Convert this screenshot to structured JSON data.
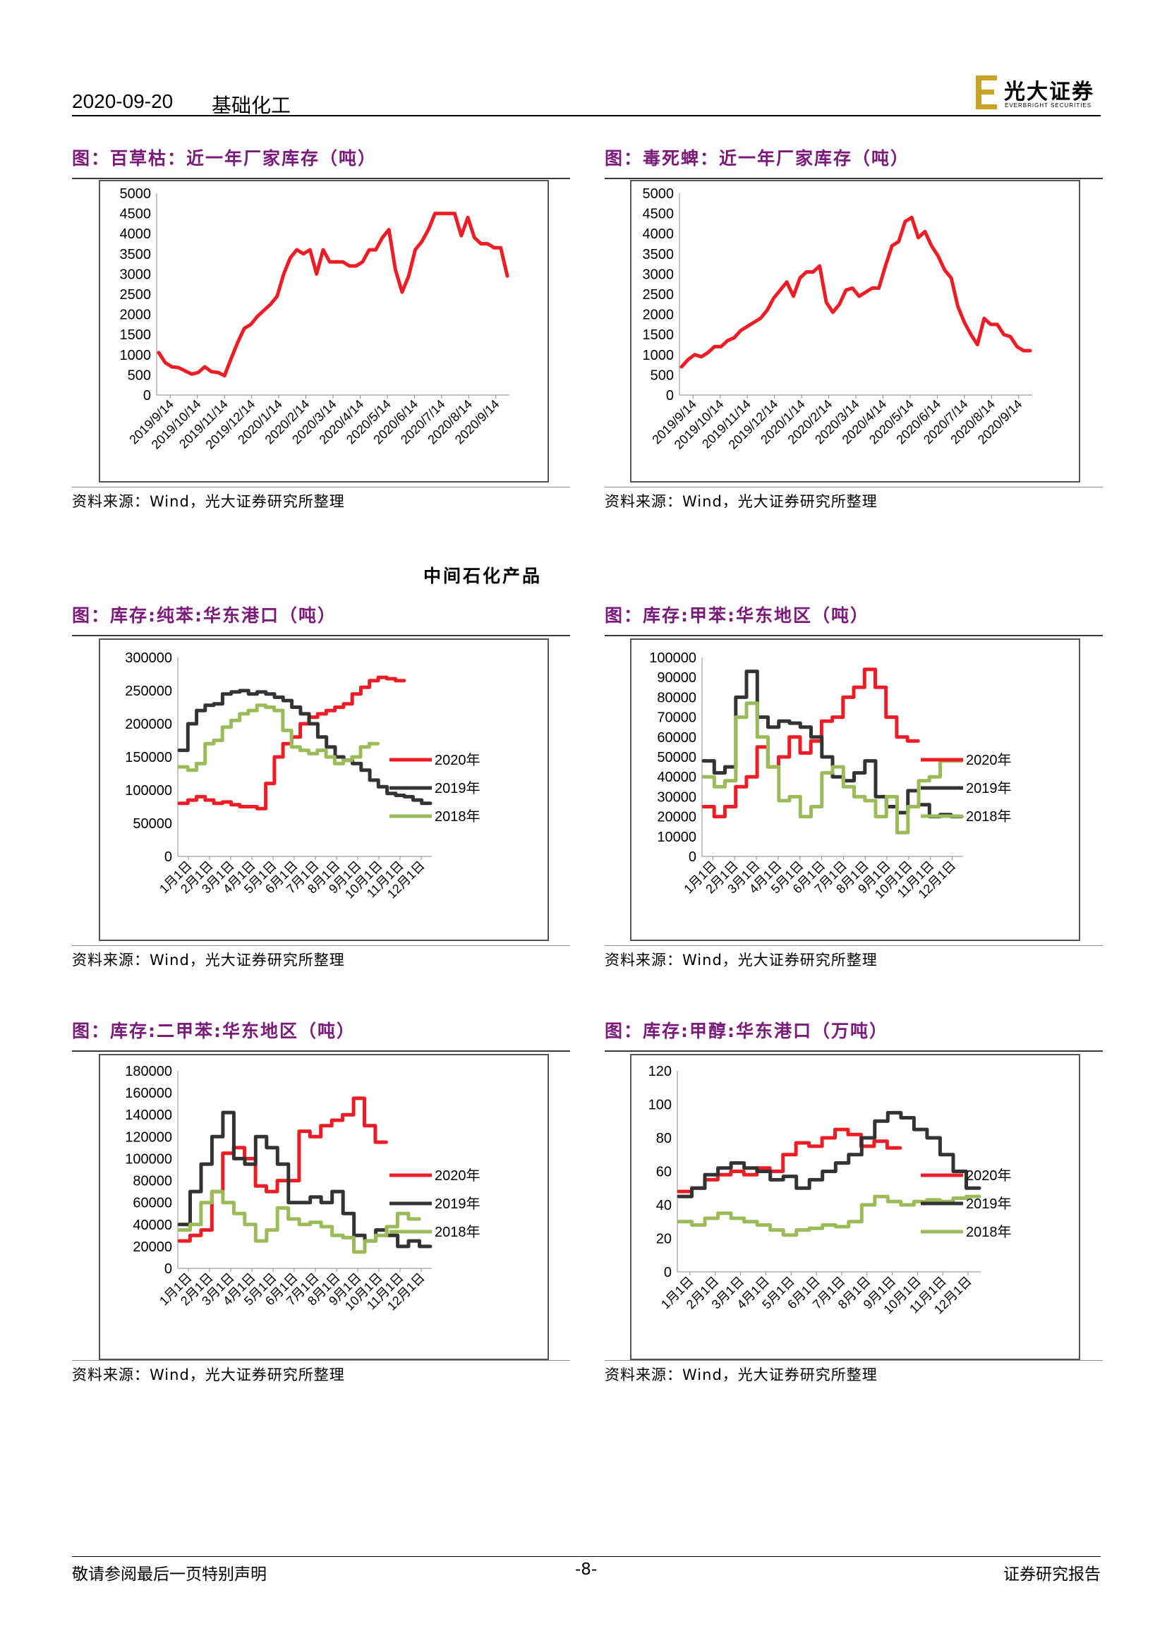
{
  "header": {
    "date": "2020-09-20",
    "category": "基础化工"
  },
  "logo": {
    "cn": "光大证券",
    "en": "EVERBRIGHT SECURITIES"
  },
  "section_title": "中间石化产品",
  "source_text": "资料来源：Wind，光大证券研究所整理",
  "footer": {
    "left": "敬请参阅最后一页特别声明",
    "page": "-8-",
    "right": "证券研究报告"
  },
  "colors": {
    "red": "#ee1c25",
    "black": "#333333",
    "green": "#9bbb59",
    "title": "#7b1a7b"
  },
  "charts": [
    {
      "title": "图：百草枯：近一年厂家库存（吨）"
    },
    {
      "title": "图：毒死蜱：近一年厂家库存（吨）"
    },
    {
      "title": "图：库存:纯苯:华东港口（吨）"
    },
    {
      "title": "图：库存:甲苯:华东地区（吨）"
    },
    {
      "title": "图：库存:二甲苯:华东地区（吨）"
    },
    {
      "title": "图：库存:甲醇:华东港口（万吨）"
    }
  ],
  "chart_data": [
    {
      "type": "line",
      "ylim": [
        0,
        5000
      ],
      "yticks": [
        "5000",
        "4500",
        "4000",
        "3500",
        "3000",
        "2500",
        "2000",
        "1500",
        "1000",
        "500",
        "0"
      ],
      "xticks": [
        "2019/9/14",
        "2019/10/14",
        "2019/11/14",
        "2019/12/14",
        "2020/1/14",
        "2020/2/14",
        "2020/3/14",
        "2020/4/14",
        "2020/5/14",
        "2020/6/14",
        "2020/7/14",
        "2020/8/14",
        "2020/9/14"
      ],
      "series": [
        {
          "color": "#ee1c25",
          "values": [
            1050,
            800,
            700,
            680,
            600,
            520,
            560,
            700,
            580,
            560,
            480,
            900,
            1300,
            1650,
            1750,
            1950,
            2100,
            2250,
            2450,
            3000,
            3400,
            3600,
            3500,
            3600,
            3000,
            3600,
            3300,
            3300,
            3300,
            3200,
            3200,
            3300,
            3600,
            3600,
            3900,
            4100,
            3100,
            2550,
            2950,
            3600,
            3800,
            4100,
            4500,
            4500,
            4500,
            4500,
            3950,
            4400,
            3900,
            3750,
            3750,
            3650,
            3650,
            2950
          ]
        }
      ]
    },
    {
      "type": "line",
      "ylim": [
        0,
        5000
      ],
      "yticks": [
        "5000",
        "4500",
        "4000",
        "3500",
        "3000",
        "2500",
        "2000",
        "1500",
        "1000",
        "500",
        "0"
      ],
      "xticks": [
        "2019/9/14",
        "2019/10/14",
        "2019/11/14",
        "2019/12/14",
        "2020/1/14",
        "2020/2/14",
        "2020/3/14",
        "2020/4/14",
        "2020/5/14",
        "2020/6/14",
        "2020/7/14",
        "2020/8/14",
        "2020/9/14"
      ],
      "series": [
        {
          "color": "#ee1c25",
          "values": [
            700,
            880,
            1000,
            950,
            1050,
            1200,
            1200,
            1350,
            1420,
            1600,
            1700,
            1800,
            1900,
            2100,
            2400,
            2600,
            2800,
            2450,
            2900,
            3050,
            3050,
            3200,
            2300,
            2050,
            2250,
            2600,
            2650,
            2450,
            2550,
            2650,
            2650,
            3200,
            3700,
            3800,
            4300,
            4400,
            3900,
            4050,
            3700,
            3450,
            3100,
            2900,
            2200,
            1800,
            1500,
            1250,
            1900,
            1750,
            1750,
            1500,
            1450,
            1200,
            1100,
            1100
          ]
        }
      ]
    },
    {
      "type": "line",
      "ylim": [
        0,
        300000
      ],
      "yticks": [
        "300000",
        "250000",
        "200000",
        "150000",
        "100000",
        "50000",
        "0"
      ],
      "xticks": [
        "1月1日",
        "2月1日",
        "3月1日",
        "4月1日",
        "5月1日",
        "6月1日",
        "7月1日",
        "8月1日",
        "9月1日",
        "10月1日",
        "11月1日",
        "12月1日"
      ],
      "series": [
        {
          "name": "2020年",
          "color": "#ee1c25",
          "values": [
            80000,
            85000,
            90000,
            85000,
            80000,
            82000,
            78000,
            75000,
            75000,
            72000,
            110000,
            150000,
            170000,
            180000,
            200000,
            210000,
            215000,
            220000,
            225000,
            230000,
            245000,
            255000,
            265000,
            270000,
            268000,
            265000
          ]
        },
        {
          "name": "2019年",
          "color": "#333333",
          "values": [
            160000,
            200000,
            220000,
            228000,
            230000,
            245000,
            248000,
            250000,
            245000,
            248000,
            245000,
            240000,
            235000,
            225000,
            215000,
            200000,
            180000,
            165000,
            150000,
            145000,
            140000,
            130000,
            115000,
            105000,
            95000,
            92000,
            90000,
            85000,
            80000
          ]
        },
        {
          "name": "2018年",
          "color": "#9bbb59",
          "values": [
            135000,
            130000,
            140000,
            170000,
            175000,
            195000,
            205000,
            215000,
            220000,
            228000,
            225000,
            220000,
            190000,
            165000,
            160000,
            155000,
            160000,
            150000,
            140000,
            145000,
            150000,
            165000,
            170000
          ]
        }
      ]
    },
    {
      "type": "line",
      "ylim": [
        0,
        100000
      ],
      "yticks": [
        "100000",
        "90000",
        "80000",
        "70000",
        "60000",
        "50000",
        "40000",
        "30000",
        "20000",
        "10000",
        "0"
      ],
      "xticks": [
        "1月1日",
        "2月1日",
        "3月1日",
        "4月1日",
        "5月1日",
        "6月1日",
        "7月1日",
        "8月1日",
        "9月1日",
        "10月1日",
        "11月1日",
        "12月1日"
      ],
      "series": [
        {
          "name": "2020年",
          "color": "#ee1c25",
          "values": [
            25000,
            20000,
            25000,
            35000,
            40000,
            55000,
            45000,
            50000,
            60000,
            52000,
            58000,
            68000,
            70000,
            80000,
            85000,
            94000,
            85000,
            70000,
            60000,
            58000
          ]
        },
        {
          "name": "2019年",
          "color": "#333333",
          "values": [
            48000,
            42000,
            45000,
            80000,
            93000,
            70000,
            65000,
            68000,
            67000,
            65000,
            60000,
            50000,
            40000,
            38000,
            42000,
            48000,
            30000,
            25000,
            22000,
            33000,
            26000,
            20000,
            21000,
            20000
          ]
        },
        {
          "name": "2018年",
          "color": "#9bbb59",
          "values": [
            40000,
            35000,
            38000,
            70000,
            77000,
            60000,
            45000,
            28000,
            30000,
            20000,
            25000,
            42000,
            45000,
            35000,
            30000,
            28000,
            20000,
            30000,
            12000,
            25000,
            38000,
            40000,
            48000,
            48000
          ]
        }
      ]
    },
    {
      "type": "line",
      "ylim": [
        0,
        180000
      ],
      "yticks": [
        "180000",
        "160000",
        "140000",
        "120000",
        "100000",
        "80000",
        "60000",
        "40000",
        "20000",
        "0"
      ],
      "xticks": [
        "1月1日",
        "2月1日",
        "3月1日",
        "4月1日",
        "5月1日",
        "6月1日",
        "7月1日",
        "8月1日",
        "9月1日",
        "10月1日",
        "11月1日",
        "12月1日"
      ],
      "series": [
        {
          "name": "2020年",
          "color": "#ee1c25",
          "values": [
            25000,
            30000,
            35000,
            70000,
            105000,
            110000,
            100000,
            75000,
            70000,
            80000,
            80000,
            125000,
            120000,
            130000,
            135000,
            140000,
            155000,
            130000,
            115000
          ]
        },
        {
          "name": "2019年",
          "color": "#333333",
          "values": [
            40000,
            70000,
            95000,
            120000,
            142000,
            100000,
            95000,
            120000,
            110000,
            95000,
            60000,
            60000,
            65000,
            60000,
            70000,
            50000,
            30000,
            25000,
            35000,
            30000,
            20000,
            25000,
            20000
          ]
        },
        {
          "name": "2018年",
          "color": "#9bbb59",
          "values": [
            35000,
            40000,
            60000,
            70000,
            60000,
            50000,
            40000,
            25000,
            35000,
            55000,
            45000,
            40000,
            42000,
            38000,
            30000,
            28000,
            15000,
            25000,
            30000,
            38000,
            50000,
            45000
          ]
        }
      ]
    },
    {
      "type": "line",
      "ylim": [
        0,
        120
      ],
      "yticks": [
        "120",
        "100",
        "80",
        "60",
        "40",
        "20",
        "0"
      ],
      "xticks": [
        "1月1日",
        "2月1日",
        "3月1日",
        "4月1日",
        "5月1日",
        "6月1日",
        "7月1日",
        "8月1日",
        "9月1日",
        "10月1日",
        "11月1日",
        "12月1日"
      ],
      "series": [
        {
          "name": "2020年",
          "color": "#ee1c25",
          "values": [
            48,
            50,
            55,
            58,
            60,
            58,
            62,
            60,
            70,
            77,
            75,
            80,
            85,
            82,
            75,
            78,
            74
          ]
        },
        {
          "name": "2019年",
          "color": "#333333",
          "values": [
            45,
            50,
            58,
            62,
            65,
            62,
            60,
            55,
            57,
            50,
            55,
            60,
            65,
            70,
            80,
            90,
            95,
            92,
            85,
            80,
            70,
            60,
            50
          ]
        },
        {
          "name": "2018年",
          "color": "#9bbb59",
          "values": [
            30,
            28,
            32,
            35,
            32,
            30,
            28,
            25,
            22,
            25,
            26,
            28,
            27,
            30,
            40,
            45,
            42,
            40,
            42,
            43,
            42,
            44,
            45
          ]
        }
      ]
    }
  ]
}
